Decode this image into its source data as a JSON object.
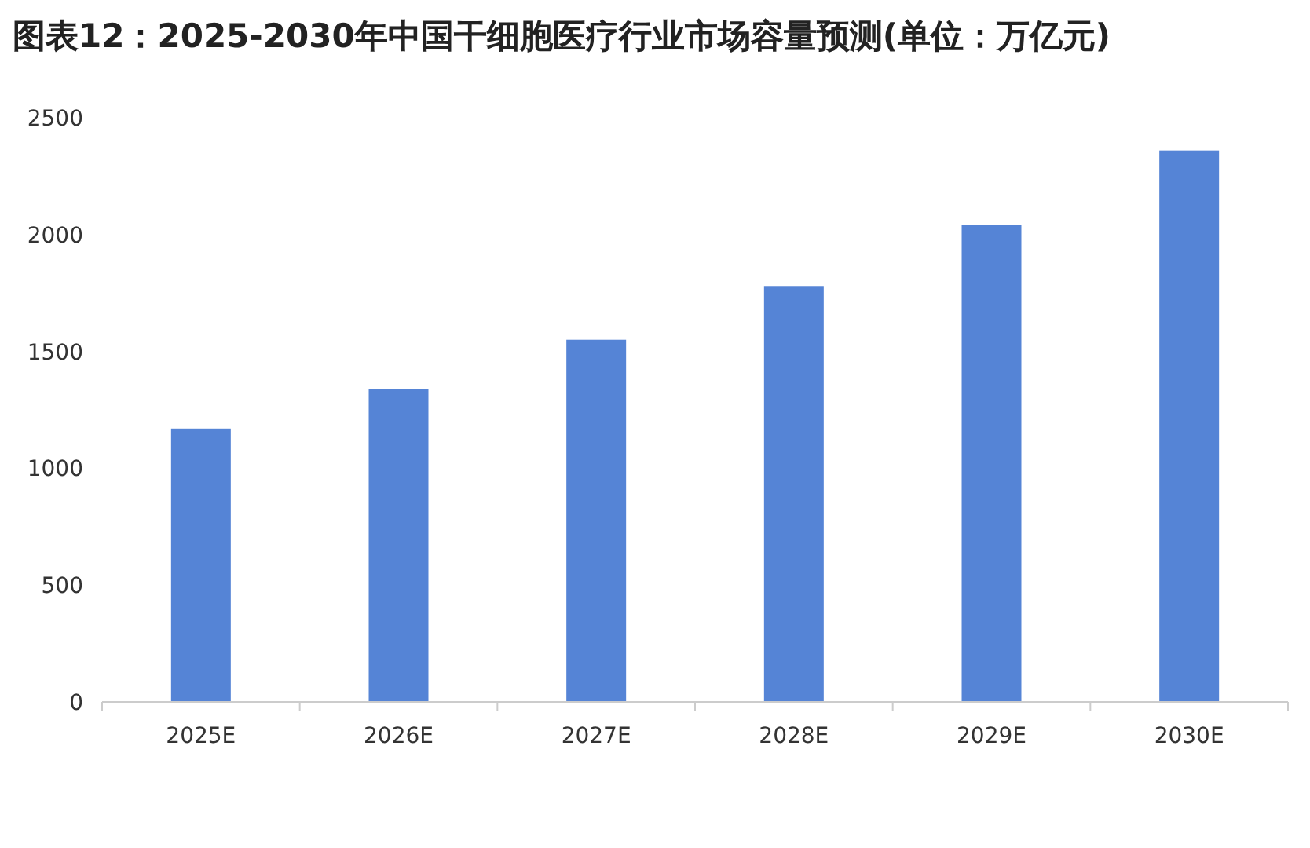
{
  "chart_data": {
    "type": "bar",
    "title": "图表12：2025-2030年中国干细胞医疗行业市场容量预测(单位：万亿元)",
    "categories": [
      "2025E",
      "2026E",
      "2027E",
      "2028E",
      "2029E",
      "2030E"
    ],
    "values": [
      1170,
      1340,
      1550,
      1780,
      2040,
      2360
    ],
    "color": "#5584d6",
    "ylim": [
      0,
      2500
    ],
    "yticks": [
      0,
      500,
      1000,
      1500,
      2000,
      2500
    ]
  }
}
